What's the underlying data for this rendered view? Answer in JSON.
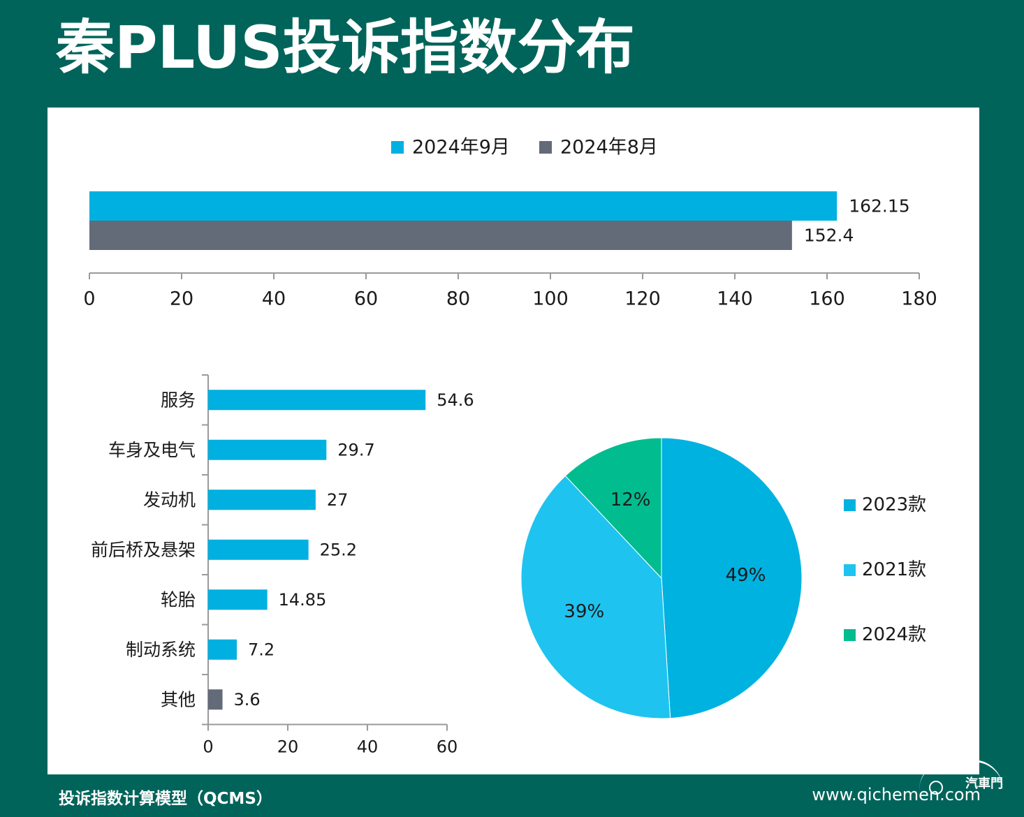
{
  "page": {
    "title": "秦PLUS投诉指数分布",
    "footer_left": "投诉指数计算模型（QCMS）",
    "footer_right": "www.qichemen.com",
    "brand": "汽車門"
  },
  "colors": {
    "background": "#00645a",
    "sep": "#00b0e0",
    "aug": "#636b78",
    "cat": "#00b0e0",
    "cat_other": "#636b78",
    "pie_2023": "#00b2e0",
    "pie_2021": "#1fc3ef",
    "pie_2024": "#00bc8f"
  },
  "chart_data": [
    {
      "type": "bar",
      "orientation": "horizontal",
      "series": [
        {
          "name": "2024年9月",
          "values": [
            162.15
          ],
          "labels": [
            "162.15"
          ]
        },
        {
          "name": "2024年8月",
          "values": [
            152.4
          ],
          "labels": [
            "152.4"
          ]
        }
      ],
      "xlim": [
        0,
        180
      ],
      "xticks": [
        0,
        20,
        40,
        60,
        80,
        100,
        120,
        140,
        160,
        180
      ],
      "legend": "top-center"
    },
    {
      "type": "bar",
      "orientation": "horizontal",
      "categories": [
        "服务",
        "车身及电气",
        "发动机",
        "前后桥及悬架",
        "轮胎",
        "制动系统",
        "其他"
      ],
      "values": [
        54.6,
        29.7,
        27,
        25.2,
        14.85,
        7.2,
        3.6
      ],
      "labels": [
        "54.6",
        "29.7",
        "27",
        "25.2",
        "14.85",
        "7.2",
        "3.6"
      ],
      "xlim": [
        0,
        60
      ],
      "xticks": [
        0,
        20,
        40,
        60
      ]
    },
    {
      "type": "pie",
      "categories": [
        "2023款",
        "2021款",
        "2024款"
      ],
      "values": [
        49,
        39,
        12
      ],
      "labels": [
        "49%",
        "39%",
        "12%"
      ],
      "legend": "right"
    }
  ]
}
